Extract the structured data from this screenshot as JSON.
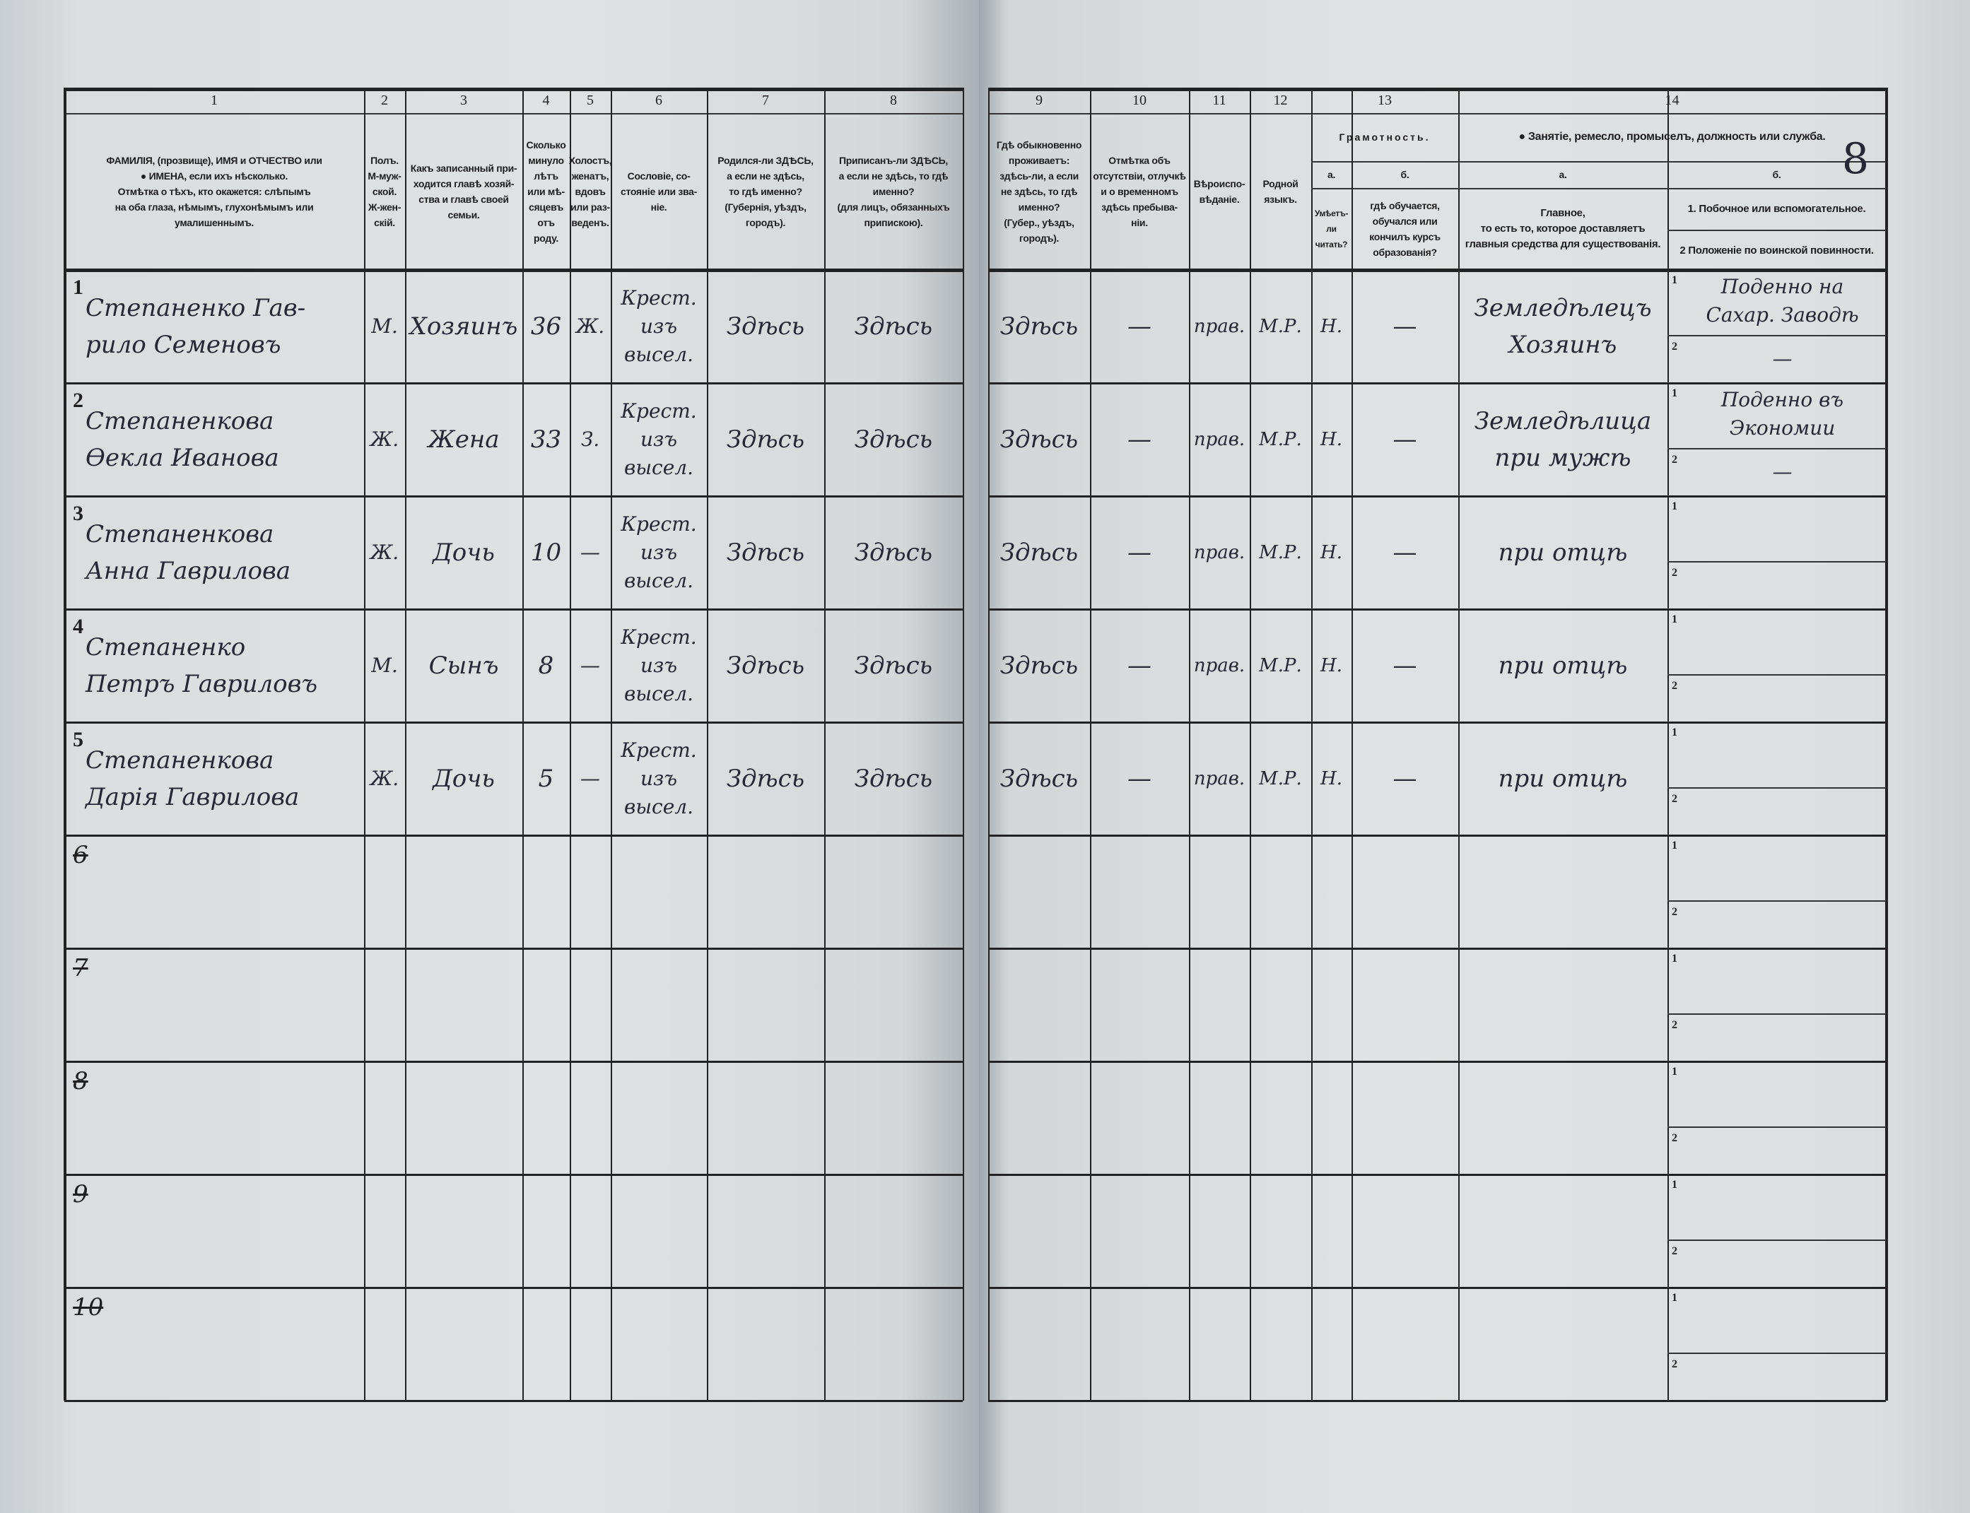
{
  "form": {
    "corner_mark": "8",
    "columns": [
      {
        "num": "1",
        "text": "ФАМИЛІЯ, (прозвище), ИМЯ и ОТЧЕСТВО или\n● ИМЕНА, если ихъ нѣсколько.\nОтмѣтка о тѣхъ, кто окажется: слѣпымъ\nна оба глаза, нѣмымъ, глухонѣмымъ или\nумалишеннымъ."
      },
      {
        "num": "2",
        "text": "Полъ.\nМ-муж-\nской.\nЖ-жен-\nскій."
      },
      {
        "num": "3",
        "text": "Какъ записанный при-\nходится главѣ хозяй-\nства и главѣ своей\nсемьи."
      },
      {
        "num": "4",
        "text": "Сколько\nминуло\nлѣтъ\nили мѣ-\nсяцевъ\nотъ роду."
      },
      {
        "num": "5",
        "text": "Холостъ,\nженатъ,\nвдовъ\nили раз-\nведенъ."
      },
      {
        "num": "6",
        "text": "Сословіе, со-\nстояніе или зва-\nніе."
      },
      {
        "num": "7",
        "text": "Родился-ли ЗДѢСЬ,\nа если не здѣсь,\nто гдѣ именно?\n(Губернія, уѣздъ, городъ)."
      },
      {
        "num": "8",
        "text": "Приписанъ-ли ЗДѢСЬ,\nа если не здѣсь, то гдѣ\nименно?\n(для лицъ, обязанныхъ\nприпискою)."
      },
      {
        "num": "9",
        "text": "Гдѣ обыкновенно\nпроживаетъ:\nздѣсь-ли, а если\nне здѣсь, то гдѣ\nименно?\n(Губер., уѣздъ, городъ)."
      },
      {
        "num": "10",
        "text": "Отмѣтка объ\nотсутствіи, отлучкѣ\nи о временномъ\nздѣсь пребыва-\nніи."
      },
      {
        "num": "11",
        "text": "Вѣроиспо-\nвѣданіе."
      },
      {
        "num": "12",
        "text": "Родной\nязыкъ."
      }
    ],
    "col13": {
      "num": "13",
      "title": "Грамотность.",
      "a_label": "а.",
      "b_label": "б.",
      "a_text": "Умѣетъ-\nли\nчитать?",
      "b_text": "гдѣ обучается,\nобучался или\nкончилъ курсъ\nобразованія?"
    },
    "col14": {
      "num": "14",
      "title": "● Занятіе, ремесло, промыселъ, должность или служба.",
      "a_label": "а.",
      "b_label": "б.",
      "a_text": "Главное,\nто есть то, которое доставляетъ\nглавныя средства для существованія.",
      "b1_text": "1. Побочное или вспомогательное.",
      "b2_text": "2 Положеніе по воинской повинности."
    },
    "sub_index_1": "1",
    "sub_index_2": "2"
  },
  "rows": [
    {
      "n": "1",
      "name": "Степаненко Гав-\nрило Семеновъ",
      "sex": "М.",
      "relation": "Хозяинъ",
      "age": "36",
      "marital": "Ж.",
      "estate": "Крест.\nизъ высел.",
      "birthplace": "Здѣсь",
      "registered": "Здѣсь",
      "residence": "Здѣсь",
      "absence": "—",
      "religion": "прав.",
      "language": "М.Р.",
      "literacy": "Н.",
      "education": "—",
      "occupation_main": "Земледѣлецъ\nХозяинъ",
      "occupation_side": "Поденно на\nСахар. Заводѣ",
      "military": "—"
    },
    {
      "n": "2",
      "name": "Степаненкова\nӨекла Иванова",
      "sex": "Ж.",
      "relation": "Жена",
      "age": "33",
      "marital": "З.",
      "estate": "Крест.\nизъ высел.",
      "birthplace": "Здѣсь",
      "registered": "Здѣсь",
      "residence": "Здѣсь",
      "absence": "—",
      "religion": "прав.",
      "language": "М.Р.",
      "literacy": "Н.",
      "education": "—",
      "occupation_main": "Земледѣлица\nпри мужѣ",
      "occupation_side": "Поденно въ\nЭкономии",
      "military": "—"
    },
    {
      "n": "3",
      "name": "Степаненкова\nАнна Гаврилова",
      "sex": "Ж.",
      "relation": "Дочь",
      "age": "10",
      "marital": "—",
      "estate": "Крест.\nизъ высел.",
      "birthplace": "Здѣсь",
      "registered": "Здѣсь",
      "residence": "Здѣсь",
      "absence": "—",
      "religion": "прав.",
      "language": "М.Р.",
      "literacy": "Н.",
      "education": "—",
      "occupation_main": "при отцѣ",
      "occupation_side": "",
      "military": ""
    },
    {
      "n": "4",
      "name": "Степаненко\nПетръ Гавриловъ",
      "sex": "М.",
      "relation": "Сынъ",
      "age": "8",
      "marital": "—",
      "estate": "Крест.\nизъ высел.",
      "birthplace": "Здѣсь",
      "registered": "Здѣсь",
      "residence": "Здѣсь",
      "absence": "—",
      "religion": "прав.",
      "language": "М.Р.",
      "literacy": "Н.",
      "education": "—",
      "occupation_main": "при отцѣ",
      "occupation_side": "",
      "military": ""
    },
    {
      "n": "5",
      "name": "Степаненкова\nДарія Гаврилова",
      "sex": "Ж.",
      "relation": "Дочь",
      "age": "5",
      "marital": "—",
      "estate": "Крест.\nизъ высел.",
      "birthplace": "Здѣсь",
      "registered": "Здѣсь",
      "residence": "Здѣсь",
      "absence": "—",
      "religion": "прав.",
      "language": "М.Р.",
      "literacy": "Н.",
      "education": "—",
      "occupation_main": "при отцѣ",
      "occupation_side": "",
      "military": ""
    },
    {
      "n": "6",
      "struck": true
    },
    {
      "n": "7",
      "struck": true
    },
    {
      "n": "8",
      "struck": true
    },
    {
      "n": "9",
      "struck": true
    },
    {
      "n": "10",
      "struck": true
    }
  ]
}
